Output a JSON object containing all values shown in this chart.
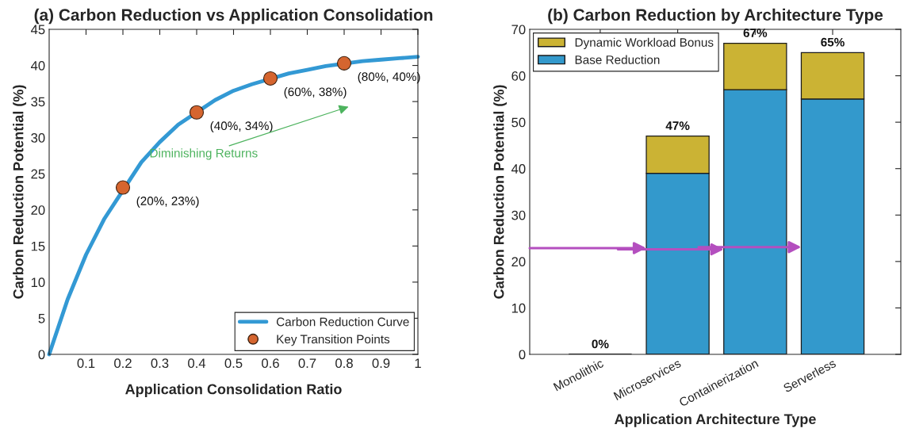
{
  "chart_data": [
    {
      "type": "line",
      "title": "(a) Carbon Reduction vs Application Consolidation",
      "xlabel": "Application Consolidation Ratio",
      "ylabel": "Carbon Reduction Potential (%)",
      "xlim": [
        0,
        1
      ],
      "ylim": [
        0,
        45
      ],
      "xticks": [
        0.1,
        0.2,
        0.3,
        0.4,
        0.5,
        0.6,
        0.7,
        0.8,
        0.9,
        1
      ],
      "yticks": [
        0,
        5,
        10,
        15,
        20,
        25,
        30,
        35,
        40,
        45
      ],
      "legend": "bottom right",
      "grid": false,
      "series": [
        {
          "name": "Carbon Reduction Curve",
          "type": "line",
          "color": "#3399d4",
          "x": [
            0,
            0.05,
            0.1,
            0.15,
            0.25,
            0.3,
            0.35,
            0.45,
            0.5,
            0.55,
            0.65,
            0.7,
            0.75,
            0.85,
            0.9,
            0.95,
            1
          ],
          "values": [
            0,
            7.6,
            13.8,
            18.8,
            26.6,
            29.4,
            31.8,
            35.2,
            36.5,
            37.4,
            38.9,
            39.4,
            39.9,
            40.6,
            40.8,
            41.0,
            41.2
          ]
        },
        {
          "name": "Key Transition Points",
          "type": "scatter",
          "marker": "circle",
          "color": "#d5652f",
          "x": [
            0.2,
            0.4,
            0.6,
            0.8
          ],
          "values": [
            23.1,
            33.5,
            38.2,
            40.3
          ]
        }
      ],
      "annotations": [
        {
          "text": "(20%, 23%)",
          "x": 0.2,
          "y": 23.1
        },
        {
          "text": "(40%, 34%)",
          "x": 0.4,
          "y": 33.5
        },
        {
          "text": "(60%, 38%)",
          "x": 0.6,
          "y": 38.2
        },
        {
          "text": "(80%, 40%)",
          "x": 0.8,
          "y": 40.3
        },
        "Diminishing Returns"
      ]
    },
    {
      "type": "bar",
      "stacked": true,
      "title": "(b) Carbon Reduction by Architecture Type",
      "xlabel": "Application Architecture Type",
      "ylabel": "Carbon Reduction Potential (%)",
      "categories": [
        "Monolithic",
        "Microservices",
        "Containerization",
        "Serverless"
      ],
      "ylim": [
        0,
        70
      ],
      "yticks": [
        0,
        10,
        20,
        30,
        40,
        50,
        60,
        70
      ],
      "legend": "top left",
      "grid": false,
      "series": [
        {
          "name": "Base Reduction",
          "color": "#3399cc",
          "values": [
            0,
            39,
            57,
            55
          ]
        },
        {
          "name": "Dynamic Workload Bonus",
          "color": "#cbb334",
          "values": [
            0,
            8,
            10,
            10
          ]
        }
      ],
      "totals": [
        "0%",
        "47%",
        "67%",
        "65%"
      ]
    }
  ]
}
